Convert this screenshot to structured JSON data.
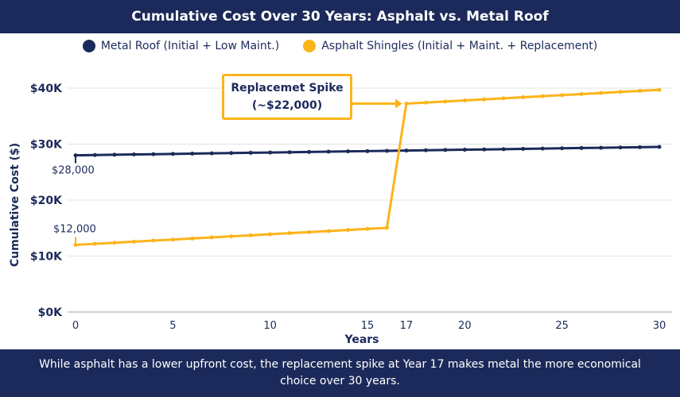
{
  "title": "Cumulative Cost Over 30 Years: Asphalt vs. Metal Roof",
  "footer": "While asphalt has a lower upfront cost, the replacement spike at Year 17 makes metal the more economical choice over 30 years.",
  "colors": {
    "metal": "#1b2a5a",
    "asphalt": "#fbb41a",
    "grid": "#e3e3e3"
  },
  "chart_data": {
    "type": "line",
    "xlabel": "Years",
    "ylabel": "Cumulative Cost ($)",
    "xlim": [
      0,
      30
    ],
    "ylim": [
      0,
      40000
    ],
    "xticks": [
      0,
      5,
      10,
      15,
      17,
      20,
      25,
      30
    ],
    "yticks": [
      0,
      10000,
      20000,
      30000,
      40000
    ],
    "ytick_labels": [
      "$0K",
      "$10K",
      "$20K",
      "$30K",
      "$40K"
    ],
    "grid": "horizontal",
    "legend_placement": "top",
    "x": [
      0,
      1,
      2,
      3,
      4,
      5,
      6,
      7,
      8,
      9,
      10,
      11,
      12,
      13,
      14,
      15,
      16,
      17,
      18,
      19,
      20,
      21,
      22,
      23,
      24,
      25,
      26,
      27,
      28,
      29,
      30
    ],
    "series": [
      {
        "name": "Metal Roof (Initial + Low Maint.)",
        "color": "#1b2a5a",
        "values": [
          28000,
          28050,
          28100,
          28150,
          28200,
          28250,
          28300,
          28350,
          28400,
          28450,
          28500,
          28550,
          28600,
          28650,
          28700,
          28750,
          28800,
          28850,
          28900,
          28950,
          29000,
          29050,
          29100,
          29150,
          29200,
          29250,
          29300,
          29350,
          29400,
          29450,
          29500
        ]
      },
      {
        "name": "Asphalt Shingles (Initial + Maint. + Replacement)",
        "color": "#fbb41a",
        "values": [
          12000,
          12190,
          12380,
          12570,
          12760,
          12950,
          13140,
          13330,
          13520,
          13710,
          13900,
          14090,
          14280,
          14470,
          14660,
          14850,
          15040,
          37230,
          37420,
          37610,
          37800,
          37990,
          38180,
          38370,
          38560,
          38750,
          38940,
          39130,
          39320,
          39510,
          39700
        ]
      }
    ],
    "annotations": [
      {
        "text": "$28,000",
        "x": 0,
        "y": 28000
      },
      {
        "text": "$12,000",
        "x": 0,
        "y": 12000
      },
      {
        "line1": "Replacemet Spike",
        "line2": "(~$22,000)",
        "x": 17,
        "y": 37230
      }
    ]
  }
}
